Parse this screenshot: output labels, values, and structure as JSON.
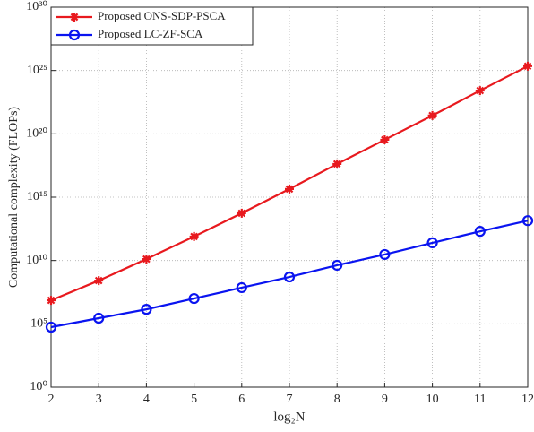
{
  "chart_data": {
    "type": "line",
    "x_label": "log₂N",
    "y_label": "Computational complexity (FLOPs)",
    "x": [
      2,
      3,
      4,
      5,
      6,
      7,
      8,
      9,
      10,
      11,
      12
    ],
    "series": [
      {
        "name": "Proposed ONS-SDP-PSCA",
        "color": "#e8191e",
        "marker": "asterisk",
        "values": [
          7200000.0,
          260000000.0,
          13000000000.0,
          780000000000.0,
          54000000000000.0,
          4400000000000000.0,
          4.2e+17,
          3.4e+19,
          2.8e+21,
          2.6e+23,
          2.2e+25
        ]
      },
      {
        "name": "Proposed LC-ZF-SCA",
        "color": "#0a14f0",
        "marker": "circle",
        "values": [
          55000.0,
          280000.0,
          1400000.0,
          10000000.0,
          72000000.0,
          500000000.0,
          4200000000.0,
          30000000000.0,
          250000000000.0,
          2000000000000.0,
          14000000000000.0
        ]
      }
    ],
    "xlim": [
      2,
      12
    ],
    "xticks": [
      2,
      3,
      4,
      5,
      6,
      7,
      8,
      9,
      10,
      11,
      12
    ],
    "ylim": [
      1,
      1e+30
    ],
    "ylog": true,
    "yticks": [
      {
        "value": 1,
        "label": "10⁰"
      },
      {
        "value": 100000.0,
        "label": "10⁵"
      },
      {
        "value": 10000000000.0,
        "label": "10¹⁰"
      },
      {
        "value": 1000000000000000.0,
        "label": "10¹⁵"
      },
      {
        "value": 1e+20,
        "label": "10²⁰"
      },
      {
        "value": 1e+25,
        "label": "10²⁵"
      },
      {
        "value": 1e+30,
        "label": "10³⁰"
      }
    ],
    "grid": true,
    "legend": "upper left"
  }
}
